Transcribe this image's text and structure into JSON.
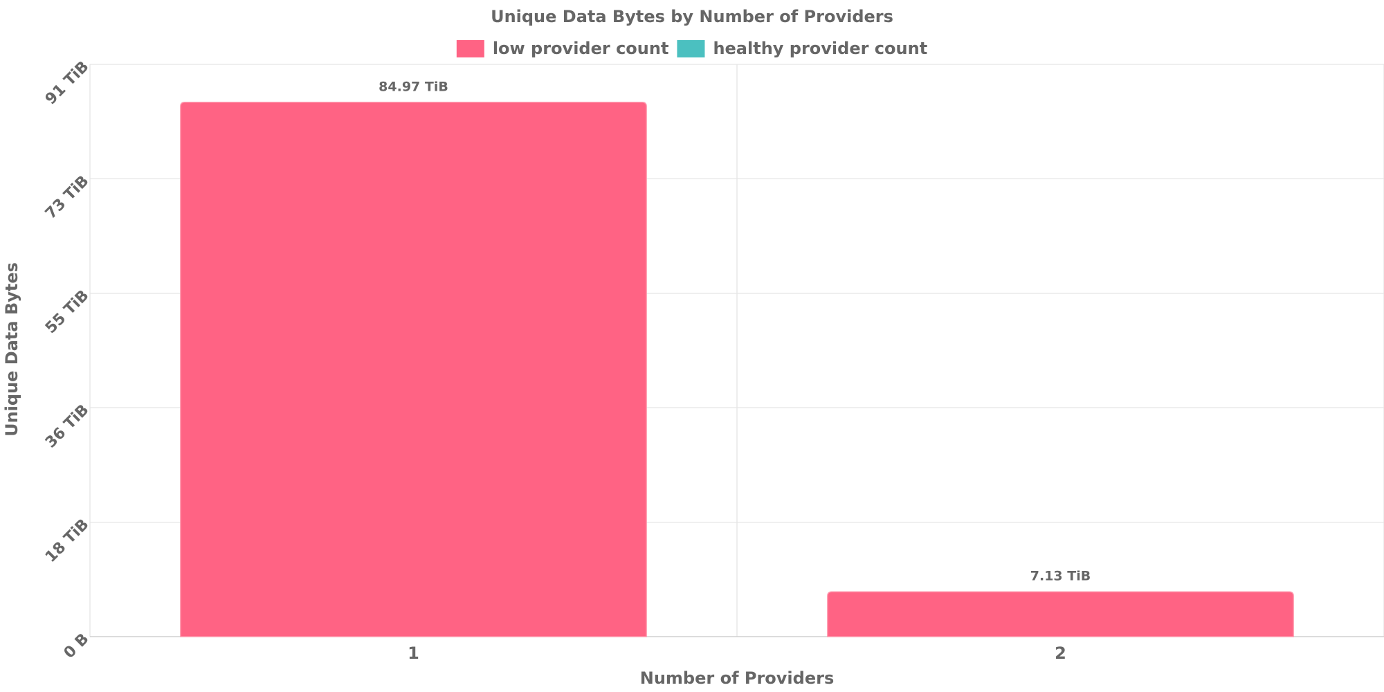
{
  "chart_data": {
    "type": "bar",
    "title": "Unique Data Bytes by Number of Providers",
    "x_label": "Number of Providers",
    "y_label": "Unique Data Bytes",
    "categories": [
      "1",
      "2"
    ],
    "series": [
      {
        "name": "low provider count",
        "color": "#ff6384",
        "values": [
          84.97,
          7.13
        ],
        "value_labels": [
          "84.97 TiB",
          "7.13 TiB"
        ]
      },
      {
        "name": "healthy provider count",
        "color": "#4bc0c0",
        "values": [
          null,
          null
        ]
      }
    ],
    "ylim": [
      0,
      91
    ],
    "yticks": [
      {
        "value": 0,
        "label": "0 B"
      },
      {
        "value": 18.2,
        "label": "18 TiB"
      },
      {
        "value": 36.4,
        "label": "36 TiB"
      },
      {
        "value": 54.6,
        "label": "55 TiB"
      },
      {
        "value": 72.8,
        "label": "73 TiB"
      },
      {
        "value": 91,
        "label": "91 TiB"
      }
    ],
    "grid": true
  }
}
